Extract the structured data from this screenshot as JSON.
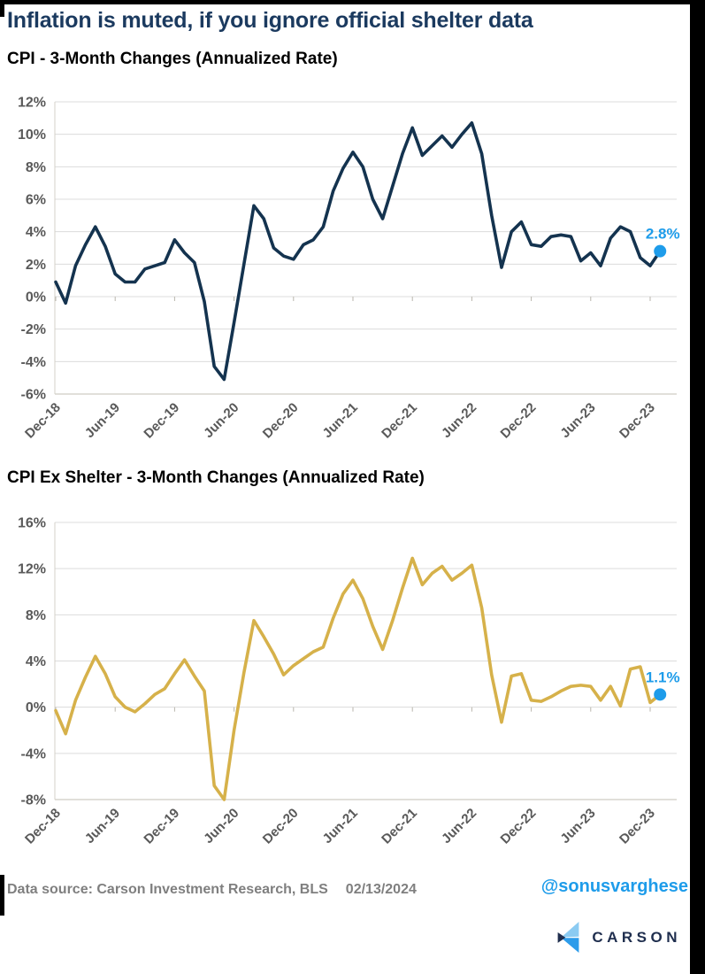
{
  "page": {
    "title": "Inflation is muted, if you ignore official shelter data"
  },
  "footer": {
    "source": "Data source: Carson Investment Research, BLS",
    "date": "02/13/2024",
    "handle": "@sonusvarghese",
    "logo_text": "CARSON"
  },
  "colors": {
    "navy_line": "#14334F",
    "gold_line": "#D6B14A",
    "accent_blue": "#1E9CEA",
    "title_navy": "#1B3A5F",
    "axis_text": "#595959",
    "gridline": "#DCDCDC",
    "source_text": "#7F7F7F",
    "logo_navy": "#1F2E4E",
    "logo_light_blue": "#8BCBF2",
    "logo_mid_blue": "#2D9CEA"
  },
  "chart_data": [
    {
      "type": "line",
      "title": "CPI - 3-Month Changes (Annualized Rate)",
      "series_name": "CPI 3-month change, annualized",
      "color": "#14334F",
      "end_color": "#1E9CEA",
      "end_label": "2.8%",
      "end_value": 2.8,
      "ylim": [
        -6,
        12
      ],
      "y_step": 2,
      "grid": true,
      "legend_position": "none",
      "y_tick_labels": [
        "12%",
        "10%",
        "8%",
        "6%",
        "4%",
        "2%",
        "0%",
        "-2%",
        "-4%",
        "-6%"
      ],
      "x_tick_labels": [
        "Dec-18",
        "Jun-19",
        "Dec-19",
        "Jun-20",
        "Dec-20",
        "Jun-21",
        "Dec-21",
        "Jun-22",
        "Dec-22",
        "Jun-23",
        "Dec-23"
      ],
      "x": [
        "Dec-18",
        "Jan-19",
        "Feb-19",
        "Mar-19",
        "Apr-19",
        "May-19",
        "Jun-19",
        "Jul-19",
        "Aug-19",
        "Sep-19",
        "Oct-19",
        "Nov-19",
        "Dec-19",
        "Jan-20",
        "Feb-20",
        "Mar-20",
        "Apr-20",
        "May-20",
        "Jun-20",
        "Jul-20",
        "Aug-20",
        "Sep-20",
        "Oct-20",
        "Nov-20",
        "Dec-20",
        "Jan-21",
        "Feb-21",
        "Mar-21",
        "Apr-21",
        "May-21",
        "Jun-21",
        "Jul-21",
        "Aug-21",
        "Sep-21",
        "Oct-21",
        "Nov-21",
        "Dec-21",
        "Jan-22",
        "Feb-22",
        "Mar-22",
        "Apr-22",
        "May-22",
        "Jun-22",
        "Jul-22",
        "Aug-22",
        "Sep-22",
        "Oct-22",
        "Nov-22",
        "Dec-22",
        "Jan-23",
        "Feb-23",
        "Mar-23",
        "Apr-23",
        "May-23",
        "Jun-23",
        "Jul-23",
        "Aug-23",
        "Sep-23",
        "Oct-23",
        "Nov-23",
        "Dec-23",
        "Jan-24"
      ],
      "values": [
        0.9,
        -0.4,
        1.9,
        3.2,
        4.3,
        3.1,
        1.4,
        0.9,
        0.9,
        1.7,
        1.9,
        2.1,
        3.5,
        2.7,
        2.1,
        -0.3,
        -4.3,
        -5.1,
        -1.6,
        2.0,
        5.6,
        4.8,
        3.0,
        2.5,
        2.3,
        3.2,
        3.5,
        4.3,
        6.5,
        7.9,
        8.9,
        8.0,
        6.0,
        4.8,
        6.8,
        8.8,
        10.4,
        8.7,
        9.3,
        9.9,
        9.2,
        10.0,
        10.7,
        8.8,
        5.0,
        1.8,
        4.0,
        4.6,
        3.2,
        3.1,
        3.7,
        3.8,
        3.7,
        2.2,
        2.7,
        1.9,
        3.6,
        4.3,
        4.0,
        2.4,
        1.9,
        2.8
      ]
    },
    {
      "type": "line",
      "title": "CPI Ex Shelter - 3-Month Changes (Annualized Rate)",
      "series_name": "CPI ex shelter 3-month change, annualized",
      "color": "#D6B14A",
      "end_color": "#1E9CEA",
      "end_label": "1.1%",
      "end_value": 1.1,
      "ylim": [
        -8,
        16
      ],
      "y_step": 4,
      "grid": true,
      "legend_position": "none",
      "y_tick_labels": [
        "16%",
        "12%",
        "8%",
        "4%",
        "0%",
        "-4%",
        "-8%"
      ],
      "x_tick_labels": [
        "Dec-18",
        "Jun-19",
        "Dec-19",
        "Jun-20",
        "Dec-20",
        "Jun-21",
        "Dec-21",
        "Jun-22",
        "Dec-22",
        "Jun-23",
        "Dec-23"
      ],
      "x": [
        "Dec-18",
        "Jan-19",
        "Feb-19",
        "Mar-19",
        "Apr-19",
        "May-19",
        "Jun-19",
        "Jul-19",
        "Aug-19",
        "Sep-19",
        "Oct-19",
        "Nov-19",
        "Dec-19",
        "Jan-20",
        "Feb-20",
        "Mar-20",
        "Apr-20",
        "May-20",
        "Jun-20",
        "Jul-20",
        "Aug-20",
        "Sep-20",
        "Oct-20",
        "Nov-20",
        "Dec-20",
        "Jan-21",
        "Feb-21",
        "Mar-21",
        "Apr-21",
        "May-21",
        "Jun-21",
        "Jul-21",
        "Aug-21",
        "Sep-21",
        "Oct-21",
        "Nov-21",
        "Dec-21",
        "Jan-22",
        "Feb-22",
        "Mar-22",
        "Apr-22",
        "May-22",
        "Jun-22",
        "Jul-22",
        "Aug-22",
        "Sep-22",
        "Oct-22",
        "Nov-22",
        "Dec-22",
        "Jan-23",
        "Feb-23",
        "Mar-23",
        "Apr-23",
        "May-23",
        "Jun-23",
        "Jul-23",
        "Aug-23",
        "Sep-23",
        "Oct-23",
        "Nov-23",
        "Dec-23",
        "Jan-24"
      ],
      "values": [
        -0.3,
        -2.3,
        0.6,
        2.6,
        4.4,
        2.9,
        0.9,
        0.0,
        -0.4,
        0.3,
        1.1,
        1.6,
        2.9,
        4.1,
        2.7,
        1.4,
        -6.8,
        -8.0,
        -2.0,
        3.0,
        7.5,
        6.1,
        4.6,
        2.8,
        3.6,
        4.2,
        4.8,
        5.2,
        7.7,
        9.8,
        11.0,
        9.4,
        7.0,
        5.0,
        7.5,
        10.3,
        12.9,
        10.6,
        11.6,
        12.2,
        11.0,
        11.6,
        12.3,
        8.6,
        2.8,
        -1.3,
        2.7,
        2.9,
        0.6,
        0.5,
        0.9,
        1.4,
        1.8,
        1.9,
        1.8,
        0.6,
        1.8,
        0.1,
        3.3,
        3.5,
        0.4,
        1.1
      ]
    }
  ]
}
